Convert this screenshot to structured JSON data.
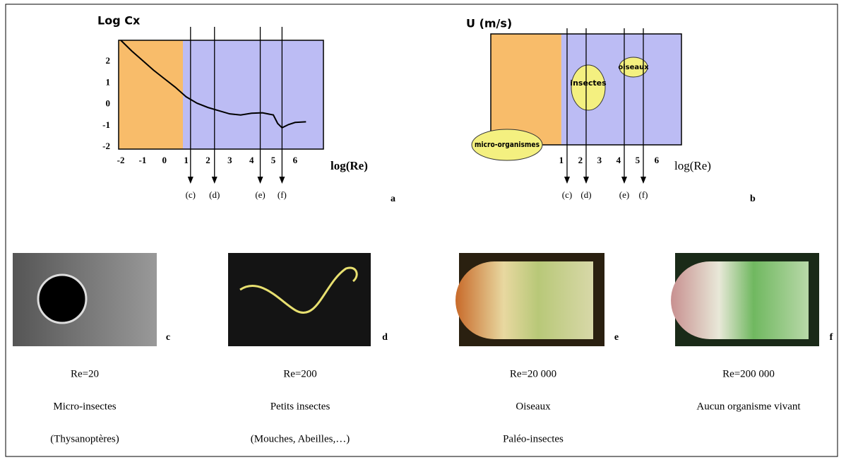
{
  "chart_data": [
    {
      "type": "line",
      "y_label": "Log Cx",
      "x_label": "log(Re)",
      "x": [
        -2,
        -1.5,
        -1,
        -0.5,
        0,
        0.5,
        1,
        1.5,
        2,
        2.5,
        3,
        3.5,
        4,
        4.5,
        5,
        5.2,
        5.4,
        5.7,
        6,
        6.5
      ],
      "values": [
        3,
        2.5,
        2.05,
        1.6,
        1.2,
        0.8,
        0.35,
        0.05,
        -0.15,
        -0.3,
        -0.45,
        -0.5,
        -0.42,
        -0.4,
        -0.5,
        -0.9,
        -1.1,
        -0.95,
        -0.85,
        -0.82
      ],
      "color": "#000000",
      "xlim": [
        -2.1,
        7.3
      ],
      "ylim": [
        -2.1,
        3
      ],
      "xticks": [
        -2,
        -1,
        0,
        1,
        2,
        3,
        4,
        5,
        6
      ],
      "yticks": [
        -2,
        -1,
        0,
        1,
        2
      ],
      "regions": [
        {
          "from": -2.1,
          "to": 0.85,
          "color": "#f8bc6a"
        },
        {
          "from": 0.85,
          "to": 7.3,
          "color": "#bcbcf4"
        }
      ],
      "arrows": [
        {
          "x": 1.2,
          "label": "(c)"
        },
        {
          "x": 2.3,
          "label": "(d)"
        },
        {
          "x": 4.4,
          "label": "(e)"
        },
        {
          "x": 5.4,
          "label": "(f)"
        }
      ],
      "panel": "a"
    },
    {
      "type": "region",
      "y_label": "U (m/s)",
      "x_label": "log(Re)",
      "xlim": [
        -2.7,
        7.3
      ],
      "xticks": [
        1,
        2,
        3,
        4,
        5,
        6
      ],
      "regions": [
        {
          "from": -2.7,
          "to": 1,
          "color": "#f8bc6a"
        },
        {
          "from": 1,
          "to": 7.3,
          "color": "#bcbcf4"
        }
      ],
      "annotations": [
        "micro-organismes",
        "insectes",
        "oiseaux"
      ],
      "arrows": [
        {
          "x": 1.3,
          "label": "(c)"
        },
        {
          "x": 2.3,
          "label": "(d)"
        },
        {
          "x": 4.3,
          "label": "(e)"
        },
        {
          "x": 5.3,
          "label": "(f)"
        }
      ],
      "panel": "b"
    }
  ],
  "photos": [
    {
      "letter": "c",
      "lines": [
        "Re=20",
        "Micro-insectes",
        "(Thysanoptères)"
      ]
    },
    {
      "letter": "d",
      "lines": [
        "Re=200",
        "Petits insectes",
        "(Mouches, Abeilles,…)"
      ]
    },
    {
      "letter": "e",
      "lines": [
        "Re=20 000",
        "Oiseaux",
        "Paléo-insectes"
      ]
    },
    {
      "letter": "f",
      "lines": [
        "Re=200 000",
        "Aucun organisme vivant"
      ]
    }
  ]
}
